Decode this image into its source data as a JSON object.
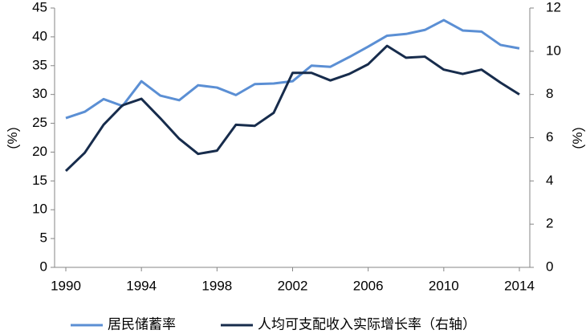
{
  "chart_data": {
    "type": "line",
    "x": [
      1990,
      1991,
      1992,
      1993,
      1994,
      1995,
      1996,
      1997,
      1998,
      1999,
      2000,
      2001,
      2002,
      2003,
      2004,
      2005,
      2006,
      2007,
      2008,
      2009,
      2010,
      2011,
      2012,
      2013,
      2014
    ],
    "series": [
      {
        "name": "居民储蓄率",
        "color": "#5b8fd4",
        "values": [
          25.9,
          27.0,
          29.2,
          28.0,
          32.3,
          29.8,
          29.0,
          31.6,
          31.2,
          29.9,
          31.8,
          31.9,
          32.3,
          35.0,
          34.8,
          36.5,
          38.3,
          40.2,
          40.5,
          41.2,
          42.9,
          41.1,
          40.9,
          38.6,
          38.0
        ]
      },
      {
        "name": "人均可支配收入实际增长率（右轴）",
        "color": "#172c4c",
        "axis": "y2",
        "values": [
          4.46,
          5.3,
          6.6,
          7.5,
          7.8,
          6.9,
          5.95,
          5.25,
          5.4,
          6.6,
          6.55,
          7.15,
          9.0,
          9.0,
          8.65,
          8.95,
          9.4,
          10.25,
          9.7,
          9.75,
          9.15,
          8.95,
          9.15,
          8.55,
          8.0
        ]
      }
    ],
    "xlim": [
      1990,
      2014
    ],
    "xticks": [
      1990,
      1994,
      1998,
      2002,
      2006,
      2010,
      2014
    ],
    "ylim": [
      0,
      45
    ],
    "yticks": [
      0,
      5,
      10,
      15,
      20,
      25,
      30,
      35,
      40,
      45
    ],
    "y2lim": [
      0,
      12
    ],
    "y2ticks": [
      0,
      2,
      4,
      6,
      8,
      10,
      12
    ],
    "ylabel": "（%）",
    "y2label": "（%）",
    "grid": false,
    "legend": "bottom"
  }
}
